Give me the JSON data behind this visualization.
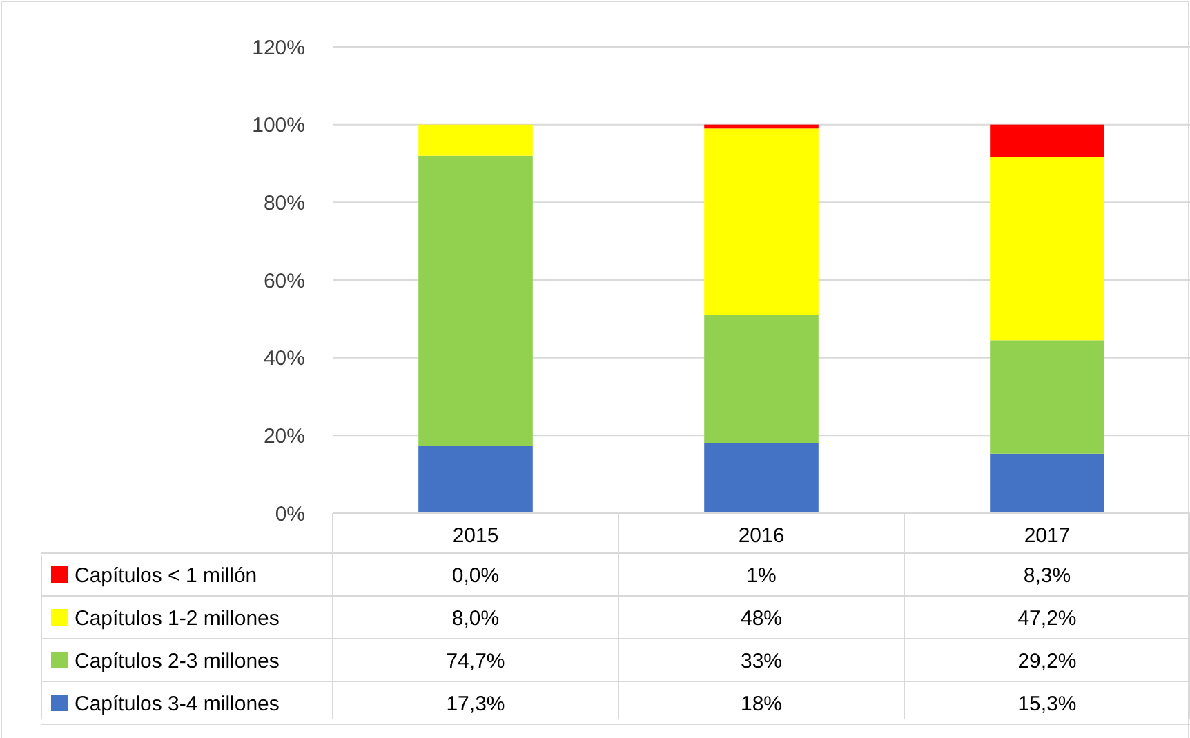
{
  "chart_data": {
    "type": "bar",
    "stacked": true,
    "categories": [
      "2015",
      "2016",
      "2017"
    ],
    "series": [
      {
        "name": "Capítulos 3-4 millones",
        "color": "#4472c4",
        "values": [
          17.3,
          18,
          15.3
        ],
        "value_labels": [
          "17,3%",
          "18%",
          "15,3%"
        ]
      },
      {
        "name": "Capítulos 2-3 millones",
        "color": "#92d050",
        "values": [
          74.7,
          33,
          29.2
        ],
        "value_labels": [
          "74,7%",
          "33%",
          "29,2%"
        ]
      },
      {
        "name": "Capítulos 1-2 millones",
        "color": "#ffff00",
        "values": [
          8.0,
          48,
          47.2
        ],
        "value_labels": [
          "8,0%",
          "48%",
          "47,2%"
        ]
      },
      {
        "name": "Capítulos < 1 millón",
        "color": "#ff0000",
        "values": [
          0.0,
          1,
          8.3
        ],
        "value_labels": [
          "0,0%",
          "1%",
          "8,3%"
        ]
      }
    ],
    "ylim": [
      0,
      120
    ],
    "yticks": [
      {
        "value": 0,
        "label": "0%"
      },
      {
        "value": 20,
        "label": "20%"
      },
      {
        "value": 40,
        "label": "40%"
      },
      {
        "value": 60,
        "label": "60%"
      },
      {
        "value": 80,
        "label": "80%"
      },
      {
        "value": 100,
        "label": "100%"
      },
      {
        "value": 120,
        "label": "120%"
      }
    ],
    "grid": "y",
    "legend": "bottom"
  }
}
